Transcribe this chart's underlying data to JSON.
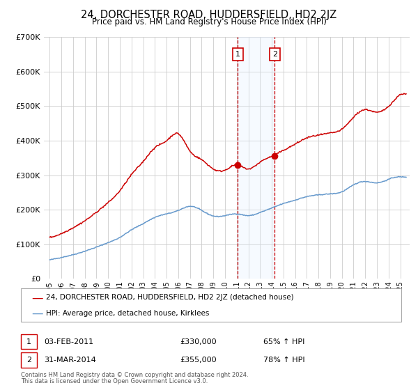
{
  "title": "24, DORCHESTER ROAD, HUDDERSFIELD, HD2 2JZ",
  "subtitle": "Price paid vs. HM Land Registry's House Price Index (HPI)",
  "legend_line1": "24, DORCHESTER ROAD, HUDDERSFIELD, HD2 2JZ (detached house)",
  "legend_line2": "HPI: Average price, detached house, Kirklees",
  "sale1_date": "03-FEB-2011",
  "sale1_price": 330000,
  "sale1_pct": "65% ↑ HPI",
  "sale1_year": 2011.09,
  "sale2_date": "31-MAR-2014",
  "sale2_price": 355000,
  "sale2_pct": "78% ↑ HPI",
  "sale2_year": 2014.25,
  "footnote1": "Contains HM Land Registry data © Crown copyright and database right 2024.",
  "footnote2": "This data is licensed under the Open Government Licence v3.0.",
  "ylim": [
    0,
    700000
  ],
  "xlim_start": 1994.5,
  "xlim_end": 2025.8,
  "red_color": "#cc0000",
  "blue_color": "#6699cc",
  "shade_color": "#ddeeff",
  "marker_color": "#cc0000",
  "bg_color": "#ffffff",
  "grid_color": "#cccccc"
}
